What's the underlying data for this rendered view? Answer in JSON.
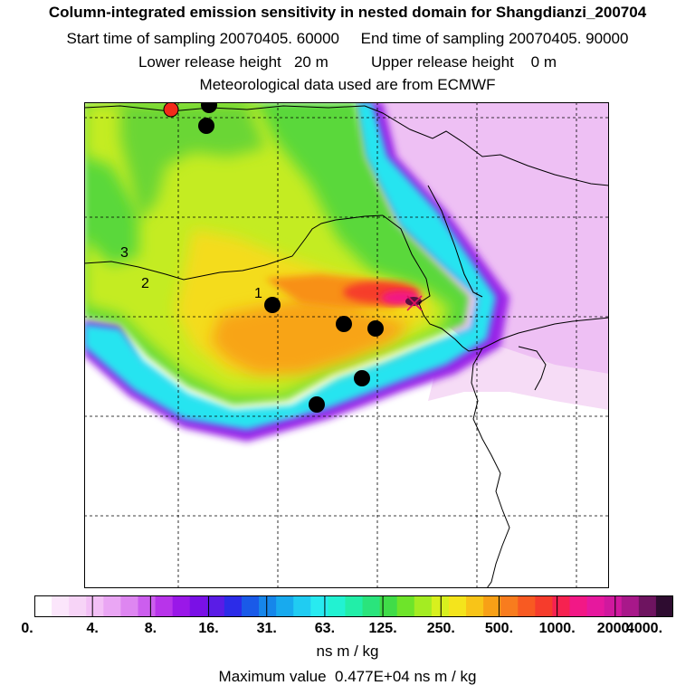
{
  "header": {
    "title": "Column-integrated emission sensitivity in nested domain for Shangdianzi_200704",
    "sampling_line": "Start time of sampling 20070405. 60000     End time of sampling 20070405. 90000",
    "release_line": "Lower release height   20 m          Upper release height    0 m",
    "met_line": "Meteorological data used are from ECMWF"
  },
  "map": {
    "contour_labels": [
      "1",
      "2",
      "3"
    ]
  },
  "colorbar": {
    "tick_labels": [
      "0.",
      "4.",
      "8.",
      "16.",
      "31.",
      "63.",
      "125.",
      "250.",
      "500.",
      "1000.",
      "2000.",
      "4000."
    ],
    "unit": "ns m / kg",
    "colors": [
      "#ffffff",
      "#fbe6fb",
      "#f7d4f7",
      "#f3c0f6",
      "#eaa6f4",
      "#de86f1",
      "#cc5eee",
      "#b834ea",
      "#9a18e8",
      "#7a10e6",
      "#5a1ce6",
      "#2c2ce8",
      "#1a5ae8",
      "#1686ea",
      "#18aaee",
      "#20ccf2",
      "#28eaf0",
      "#22f2d2",
      "#22eea8",
      "#2ae47c",
      "#40dc48",
      "#6ee42a",
      "#a4ec22",
      "#d8f01e",
      "#f4e41c",
      "#f8c418",
      "#f8a016",
      "#f87c1e",
      "#f85a22",
      "#f63c2c",
      "#f62250",
      "#f21886",
      "#e6189e",
      "#d0189e",
      "#a8188a",
      "#6e1460",
      "#2e0c30"
    ]
  },
  "footer": {
    "max_value": "Maximum value  0.477E+04 ns m / kg"
  }
}
